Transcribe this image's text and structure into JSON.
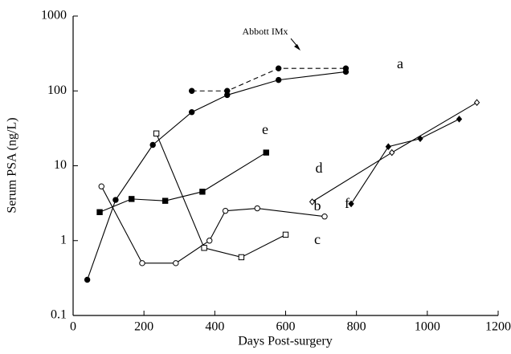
{
  "chart_data": {
    "type": "line",
    "x_label": "Days Post-surgery",
    "y_label": "Serum PSA  (ng/L)",
    "xlim": [
      0,
      1200
    ],
    "xticks": [
      0,
      200,
      400,
      600,
      800,
      1000,
      1200
    ],
    "ylim": [
      0.1,
      1000
    ],
    "yticks": [
      0.1,
      1,
      10,
      100,
      1000
    ],
    "y_scale": "log",
    "grid": false,
    "series": [
      {
        "name": "a",
        "color": "#000",
        "marker": "filled-circle",
        "dashed": false,
        "x": [
          40,
          120,
          225,
          335,
          435,
          580,
          770
        ],
        "values": [
          0.3,
          3.5,
          19,
          52,
          88,
          140,
          180
        ]
      },
      {
        "name": "Abbott IMx",
        "color": "#000",
        "marker": "filled-circle",
        "dashed": true,
        "x": [
          335,
          435,
          580,
          770
        ],
        "values": [
          100,
          100,
          200,
          200
        ]
      },
      {
        "name": "e",
        "color": "#000",
        "marker": "filled-square",
        "dashed": false,
        "x": [
          75,
          165,
          260,
          365,
          545
        ],
        "values": [
          2.4,
          3.6,
          3.4,
          4.5,
          15
        ]
      },
      {
        "name": "b",
        "color": "#000",
        "marker": "open-circle",
        "dashed": false,
        "x": [
          80,
          195,
          290,
          385,
          430,
          520,
          710
        ],
        "values": [
          5.3,
          0.5,
          0.5,
          1.0,
          2.5,
          2.7,
          2.1
        ]
      },
      {
        "name": "c",
        "color": "#000",
        "marker": "open-square",
        "dashed": false,
        "x": [
          235,
          370,
          475,
          600
        ],
        "values": [
          27,
          0.8,
          0.6,
          1.2
        ]
      },
      {
        "name": "d",
        "color": "#000",
        "marker": "open-diamond",
        "dashed": false,
        "x": [
          675,
          900,
          1140
        ],
        "values": [
          3.3,
          15,
          70
        ]
      },
      {
        "name": "f",
        "color": "#000",
        "marker": "filled-diamond",
        "dashed": false,
        "x": [
          785,
          890,
          980,
          1090
        ],
        "values": [
          3.1,
          18,
          23,
          42
        ]
      }
    ]
  }
}
